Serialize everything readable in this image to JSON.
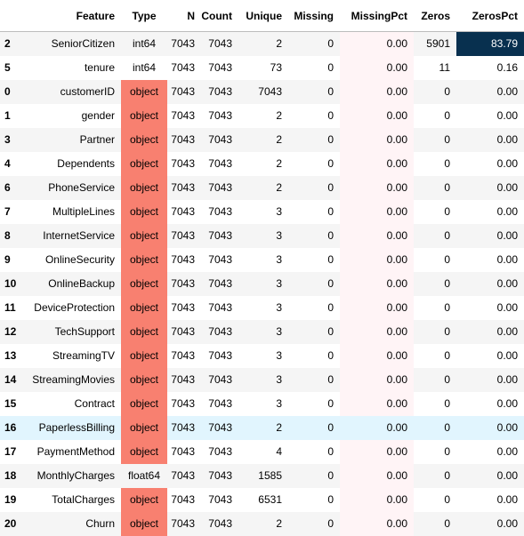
{
  "table": {
    "columns": [
      "Feature",
      "Type",
      "N",
      "Count",
      "Unique",
      "Missing",
      "MissingPct",
      "Zeros",
      "ZerosPct"
    ],
    "highlight_colors": {
      "object_type_bg": "#f88070",
      "zeros_pct_high_bg": "#08304f",
      "missing_pct_bg": "#fff4f6",
      "hover_row_bg": "#e1f5fe"
    },
    "rows": [
      {
        "index": "2",
        "feature": "SeniorCitizen",
        "type": "int64",
        "n": "7043",
        "count": "7043",
        "unique": "2",
        "missing": "0",
        "missing_pct": "0.00",
        "zeros": "5901",
        "zeros_pct": "83.79"
      },
      {
        "index": "5",
        "feature": "tenure",
        "type": "int64",
        "n": "7043",
        "count": "7043",
        "unique": "73",
        "missing": "0",
        "missing_pct": "0.00",
        "zeros": "11",
        "zeros_pct": "0.16"
      },
      {
        "index": "0",
        "feature": "customerID",
        "type": "object",
        "n": "7043",
        "count": "7043",
        "unique": "7043",
        "missing": "0",
        "missing_pct": "0.00",
        "zeros": "0",
        "zeros_pct": "0.00"
      },
      {
        "index": "1",
        "feature": "gender",
        "type": "object",
        "n": "7043",
        "count": "7043",
        "unique": "2",
        "missing": "0",
        "missing_pct": "0.00",
        "zeros": "0",
        "zeros_pct": "0.00"
      },
      {
        "index": "3",
        "feature": "Partner",
        "type": "object",
        "n": "7043",
        "count": "7043",
        "unique": "2",
        "missing": "0",
        "missing_pct": "0.00",
        "zeros": "0",
        "zeros_pct": "0.00"
      },
      {
        "index": "4",
        "feature": "Dependents",
        "type": "object",
        "n": "7043",
        "count": "7043",
        "unique": "2",
        "missing": "0",
        "missing_pct": "0.00",
        "zeros": "0",
        "zeros_pct": "0.00"
      },
      {
        "index": "6",
        "feature": "PhoneService",
        "type": "object",
        "n": "7043",
        "count": "7043",
        "unique": "2",
        "missing": "0",
        "missing_pct": "0.00",
        "zeros": "0",
        "zeros_pct": "0.00"
      },
      {
        "index": "7",
        "feature": "MultipleLines",
        "type": "object",
        "n": "7043",
        "count": "7043",
        "unique": "3",
        "missing": "0",
        "missing_pct": "0.00",
        "zeros": "0",
        "zeros_pct": "0.00"
      },
      {
        "index": "8",
        "feature": "InternetService",
        "type": "object",
        "n": "7043",
        "count": "7043",
        "unique": "3",
        "missing": "0",
        "missing_pct": "0.00",
        "zeros": "0",
        "zeros_pct": "0.00"
      },
      {
        "index": "9",
        "feature": "OnlineSecurity",
        "type": "object",
        "n": "7043",
        "count": "7043",
        "unique": "3",
        "missing": "0",
        "missing_pct": "0.00",
        "zeros": "0",
        "zeros_pct": "0.00"
      },
      {
        "index": "10",
        "feature": "OnlineBackup",
        "type": "object",
        "n": "7043",
        "count": "7043",
        "unique": "3",
        "missing": "0",
        "missing_pct": "0.00",
        "zeros": "0",
        "zeros_pct": "0.00"
      },
      {
        "index": "11",
        "feature": "DeviceProtection",
        "type": "object",
        "n": "7043",
        "count": "7043",
        "unique": "3",
        "missing": "0",
        "missing_pct": "0.00",
        "zeros": "0",
        "zeros_pct": "0.00"
      },
      {
        "index": "12",
        "feature": "TechSupport",
        "type": "object",
        "n": "7043",
        "count": "7043",
        "unique": "3",
        "missing": "0",
        "missing_pct": "0.00",
        "zeros": "0",
        "zeros_pct": "0.00"
      },
      {
        "index": "13",
        "feature": "StreamingTV",
        "type": "object",
        "n": "7043",
        "count": "7043",
        "unique": "3",
        "missing": "0",
        "missing_pct": "0.00",
        "zeros": "0",
        "zeros_pct": "0.00"
      },
      {
        "index": "14",
        "feature": "StreamingMovies",
        "type": "object",
        "n": "7043",
        "count": "7043",
        "unique": "3",
        "missing": "0",
        "missing_pct": "0.00",
        "zeros": "0",
        "zeros_pct": "0.00"
      },
      {
        "index": "15",
        "feature": "Contract",
        "type": "object",
        "n": "7043",
        "count": "7043",
        "unique": "3",
        "missing": "0",
        "missing_pct": "0.00",
        "zeros": "0",
        "zeros_pct": "0.00"
      },
      {
        "index": "16",
        "feature": "PaperlessBilling",
        "type": "object",
        "n": "7043",
        "count": "7043",
        "unique": "2",
        "missing": "0",
        "missing_pct": "0.00",
        "zeros": "0",
        "zeros_pct": "0.00"
      },
      {
        "index": "17",
        "feature": "PaymentMethod",
        "type": "object",
        "n": "7043",
        "count": "7043",
        "unique": "4",
        "missing": "0",
        "missing_pct": "0.00",
        "zeros": "0",
        "zeros_pct": "0.00"
      },
      {
        "index": "18",
        "feature": "MonthlyCharges",
        "type": "float64",
        "n": "7043",
        "count": "7043",
        "unique": "1585",
        "missing": "0",
        "missing_pct": "0.00",
        "zeros": "0",
        "zeros_pct": "0.00"
      },
      {
        "index": "19",
        "feature": "TotalCharges",
        "type": "object",
        "n": "7043",
        "count": "7043",
        "unique": "6531",
        "missing": "0",
        "missing_pct": "0.00",
        "zeros": "0",
        "zeros_pct": "0.00"
      },
      {
        "index": "20",
        "feature": "Churn",
        "type": "object",
        "n": "7043",
        "count": "7043",
        "unique": "2",
        "missing": "0",
        "missing_pct": "0.00",
        "zeros": "0",
        "zeros_pct": "0.00"
      }
    ]
  }
}
